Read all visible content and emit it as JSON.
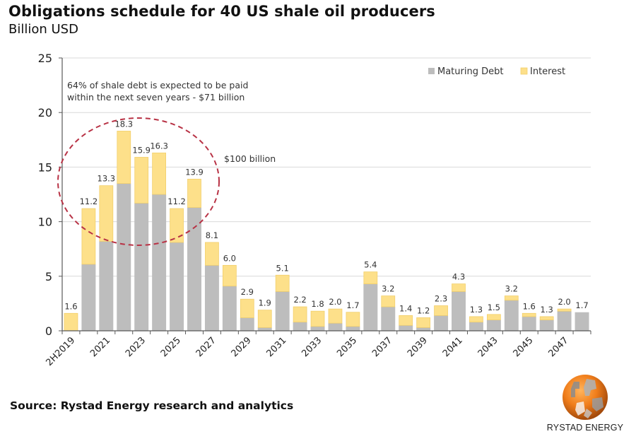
{
  "header": {
    "title": "Obligations schedule for 40 US shale oil producers",
    "subtitle": "Billion USD"
  },
  "footer": {
    "source": "Source: Rystad Energy research and analytics",
    "logo_text": "RYSTAD ENERGY"
  },
  "colors": {
    "maturing_debt": "#bdbdbd",
    "interest": "#fde08a",
    "interest_border": "#f2cf6b",
    "circle": "#b83245",
    "grid": "#d9d9d9",
    "axis": "#595959"
  },
  "chart_data": {
    "type": "bar",
    "stacked": true,
    "title": "Obligations schedule for 40 US shale oil producers",
    "subtitle": "Billion USD",
    "xlabel": "",
    "ylabel": "Billion USD",
    "ylim": [
      0,
      25
    ],
    "yticks": [
      0,
      5,
      10,
      15,
      20,
      25
    ],
    "grid": true,
    "legend_position": "top-right",
    "categories": [
      "2H2019",
      "2020",
      "2021",
      "2022",
      "2023",
      "2024",
      "2025",
      "2026",
      "2027",
      "2028",
      "2029",
      "2030",
      "2031",
      "2032",
      "2033",
      "2034",
      "2035",
      "2036",
      "2037",
      "2038",
      "2039",
      "2040",
      "2041",
      "2042",
      "2043",
      "2044",
      "2045",
      "2046",
      "2047",
      "2048"
    ],
    "xtick_labels": [
      "2H2019",
      "2021",
      "2023",
      "2025",
      "2027",
      "2029",
      "2031",
      "2033",
      "2035",
      "2037",
      "2039",
      "2041",
      "2043",
      "2045",
      "2047"
    ],
    "series": [
      {
        "name": "Maturing Debt",
        "values": [
          0.0,
          6.1,
          8.2,
          13.5,
          11.7,
          12.5,
          8.1,
          11.3,
          6.0,
          4.1,
          1.2,
          0.3,
          3.6,
          0.8,
          0.4,
          0.7,
          0.4,
          4.3,
          2.2,
          0.5,
          0.3,
          1.4,
          3.6,
          0.8,
          1.0,
          2.8,
          1.3,
          1.0,
          1.8,
          1.7
        ]
      },
      {
        "name": "Interest",
        "values": [
          1.6,
          5.1,
          5.1,
          4.8,
          4.2,
          3.8,
          3.1,
          2.6,
          2.1,
          1.9,
          1.7,
          1.6,
          1.5,
          1.4,
          1.4,
          1.3,
          1.3,
          1.1,
          1.0,
          0.9,
          0.9,
          0.9,
          0.7,
          0.5,
          0.5,
          0.4,
          0.3,
          0.3,
          0.2,
          0.0
        ]
      }
    ],
    "totals": [
      "1.6",
      "11.2",
      "13.3",
      "18.3",
      "15.9",
      "16.3",
      "11.2",
      "13.9",
      "8.1",
      "6.0",
      "2.9",
      "1.9",
      "5.1",
      "2.2",
      "1.8",
      "2.0",
      "1.7",
      "5.4",
      "3.2",
      "1.4",
      "1.2",
      "2.3",
      "4.3",
      "1.3",
      "1.5",
      "3.2",
      "1.6",
      "1.3",
      "2.0",
      "1.7"
    ],
    "annotations": [
      {
        "text_line1": "64% of shale debt is expected to be paid",
        "text_line2": "within the next seven years - $71 billion"
      },
      {
        "text": "$100 billion"
      }
    ],
    "highlight": {
      "shape": "dashed-ellipse",
      "covers_categories": [
        "2020",
        "2021",
        "2022",
        "2023",
        "2024",
        "2025",
        "2026"
      ]
    }
  }
}
